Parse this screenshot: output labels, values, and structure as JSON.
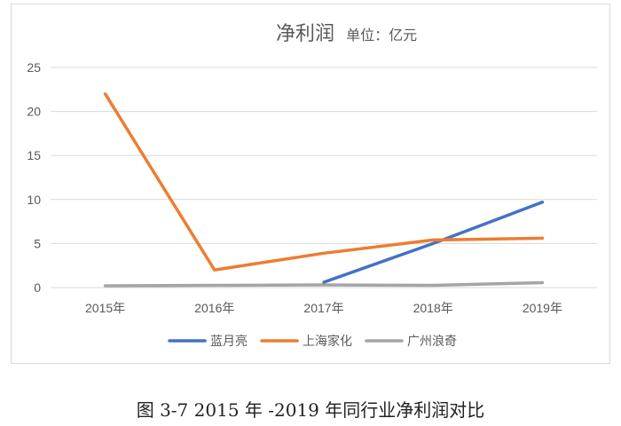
{
  "chart_data": {
    "type": "line",
    "title": "净利润",
    "subtitle": "单位：亿元",
    "categories": [
      "2015年",
      "2016年",
      "2017年",
      "2018年",
      "2019年"
    ],
    "ylim": [
      0,
      25
    ],
    "yticks": [
      0,
      5,
      10,
      15,
      20,
      25
    ],
    "grid": true,
    "legend_position": "bottom",
    "series": [
      {
        "name": "蓝月亮",
        "color": "#4472C4",
        "values": [
          null,
          null,
          0.6,
          5.0,
          9.7
        ]
      },
      {
        "name": "上海家化",
        "color": "#ED7D31",
        "values": [
          22.0,
          2.0,
          3.9,
          5.4,
          5.6
        ]
      },
      {
        "name": "广州浪奇",
        "color": "#A5A5A5",
        "values": [
          0.2,
          0.25,
          0.3,
          0.25,
          0.55
        ]
      }
    ]
  },
  "caption": "图 3-7 2015 年 -2019 年同行业净利润对比"
}
